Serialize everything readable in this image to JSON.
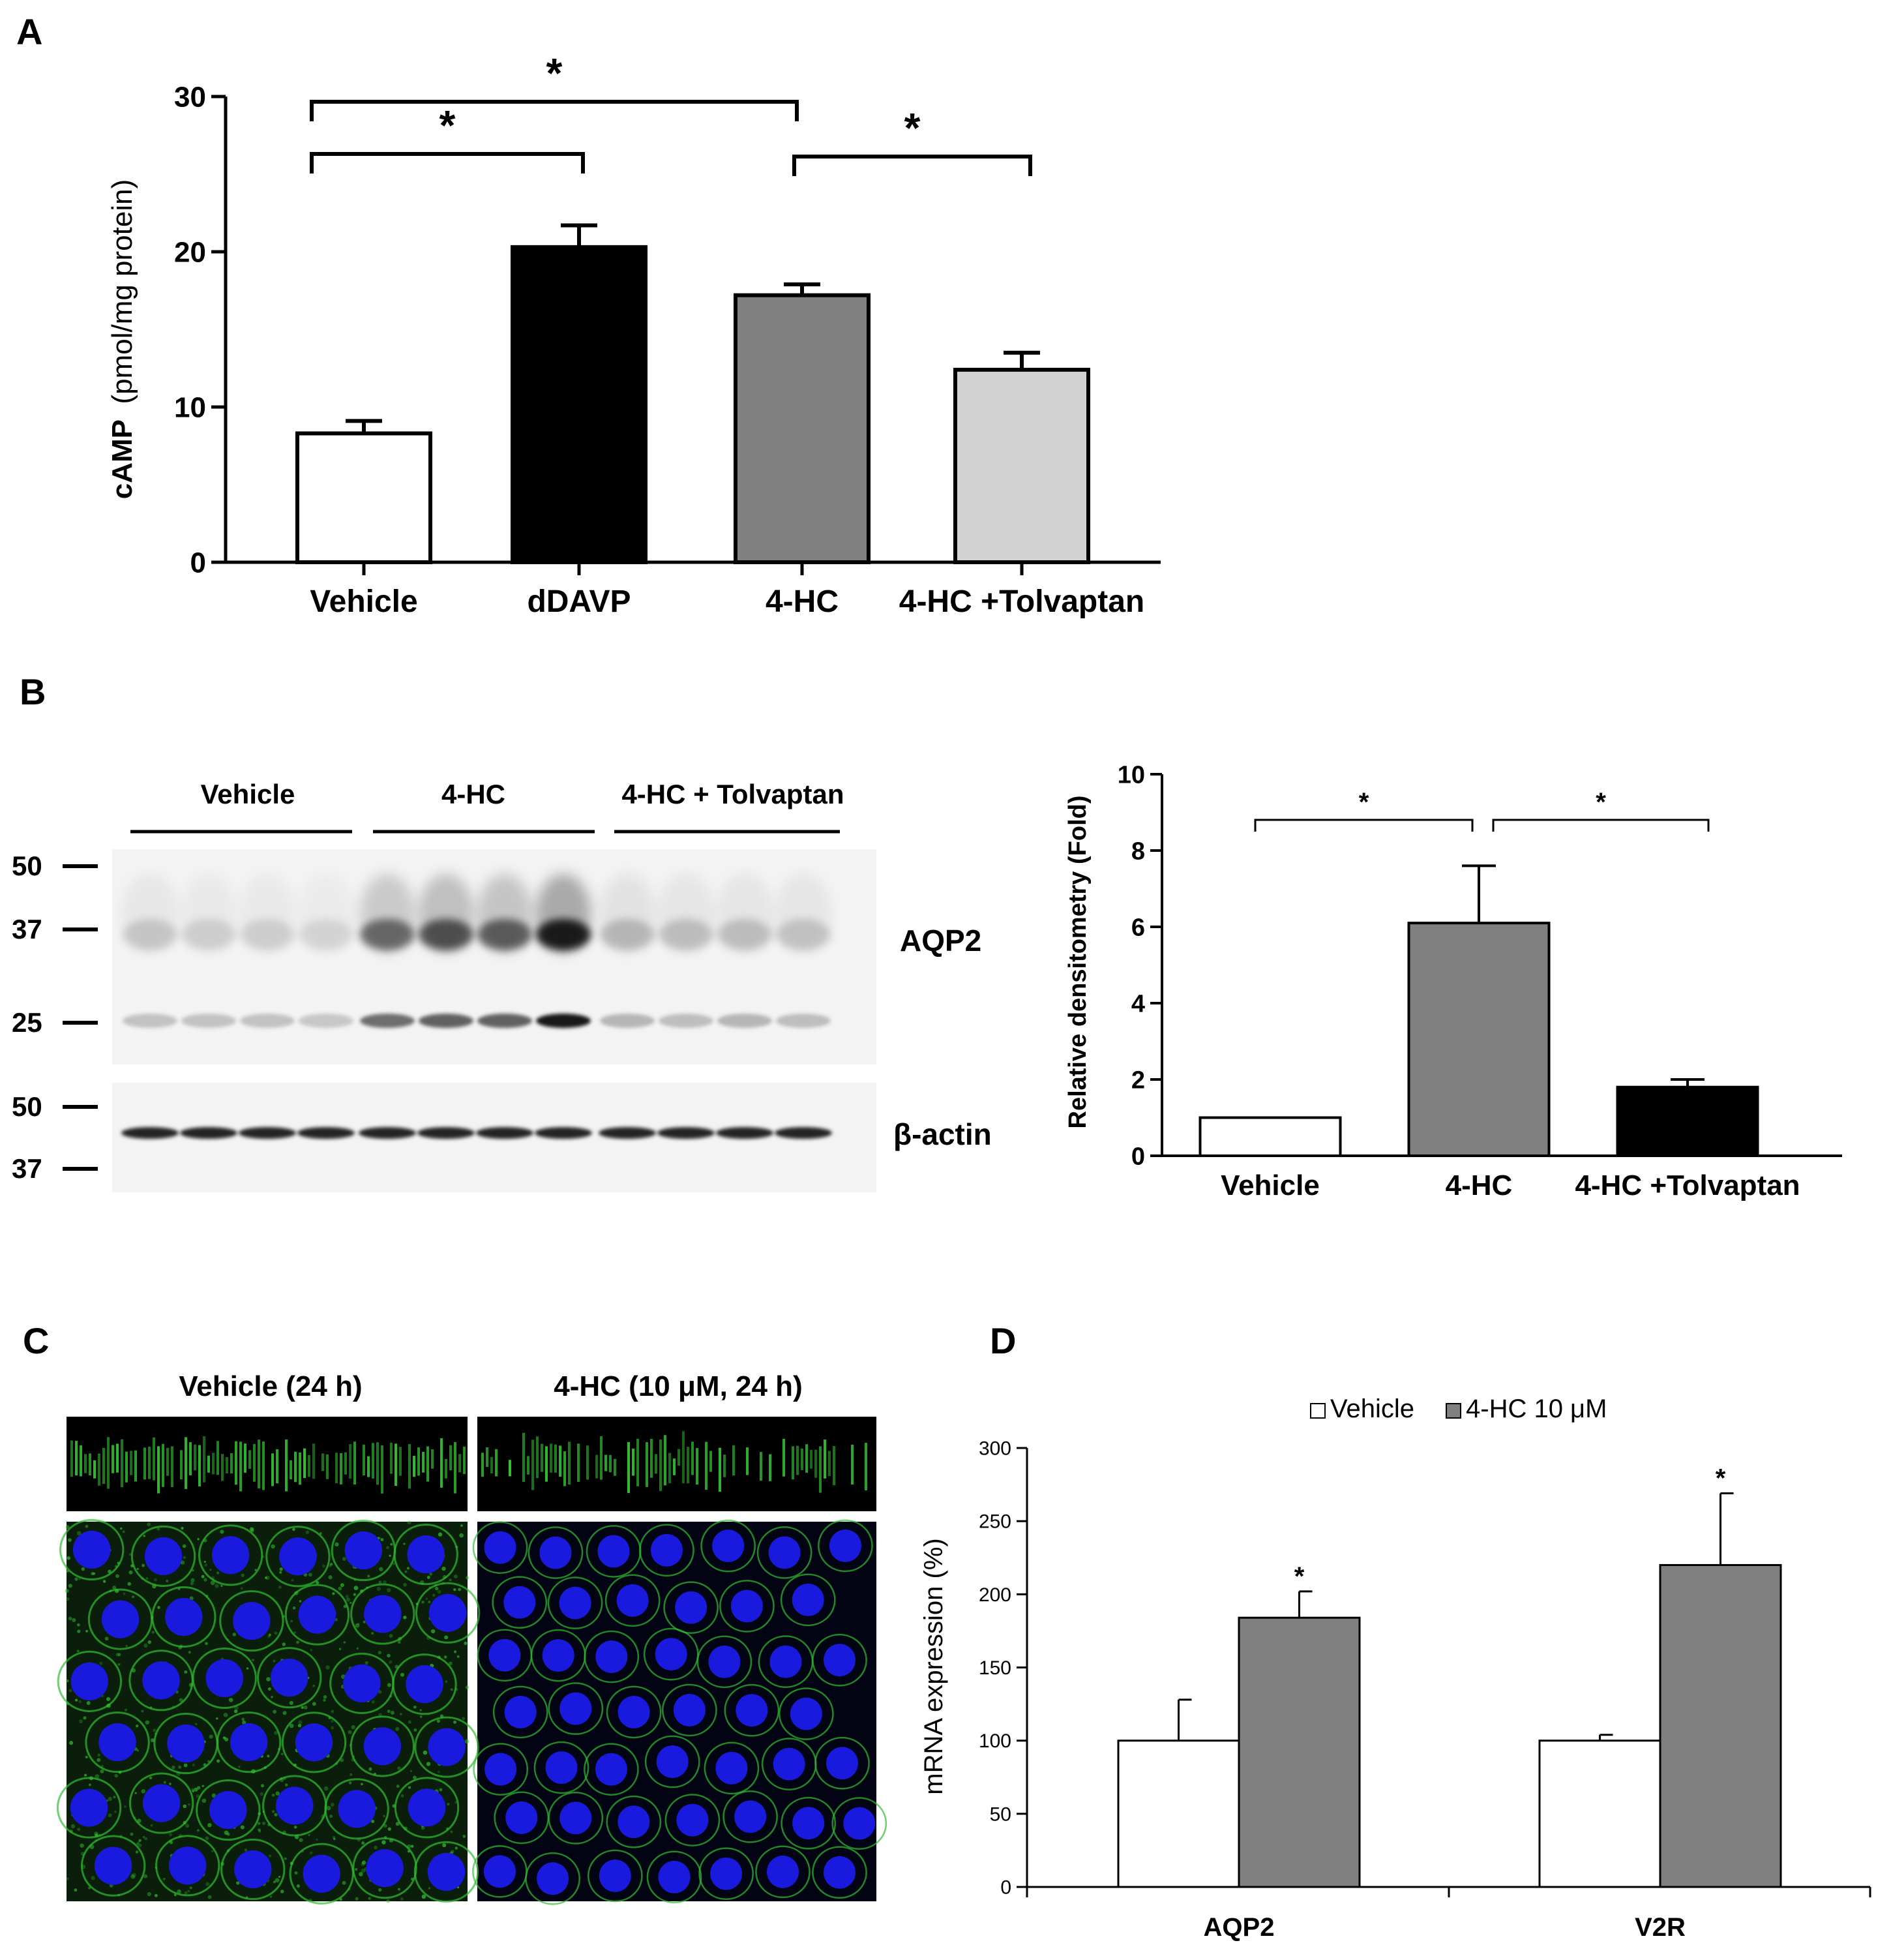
{
  "panels": {
    "a": "A",
    "b": "B",
    "c": "C",
    "d": "D"
  },
  "blot": {
    "groups": [
      "Vehicle",
      "4-HC",
      "4-HC + Tolvaptan"
    ],
    "aqp2_label": "AQP2",
    "actin_label": "β-actin",
    "markers_top": [
      "50",
      "37",
      "25"
    ],
    "markers_bottom": [
      "50",
      "37"
    ],
    "lanes_per_group": 4
  },
  "images": {
    "titles": [
      "Vehicle (24 h)",
      "4-HC (10 μM, 24 h)"
    ]
  },
  "colors": {
    "white_bar": "#ffffff",
    "black_bar": "#000000",
    "dark_gray_bar": "#808080",
    "light_gray_bar": "#d3d3d3",
    "fluor_green": "#2fbf2f",
    "nuclei_blue": "#1a1adf"
  },
  "chart_data": [
    {
      "id": "A",
      "type": "bar",
      "categories": [
        "Vehicle",
        "dDAVP",
        "4-HC",
        "4-HC +Tolvaptan"
      ],
      "values": [
        8.3,
        20.3,
        17.2,
        12.4
      ],
      "errors": [
        0.8,
        1.4,
        0.7,
        1.1
      ],
      "bar_colors": [
        "#ffffff",
        "#000000",
        "#808080",
        "#d3d3d3"
      ],
      "ylabel_bold": "cAMP",
      "ylabel_rest": "(pmol/mg protein)",
      "ylim": [
        0,
        30
      ],
      "yticks": [
        0,
        10,
        20,
        30
      ],
      "significance": [
        {
          "from": 0,
          "to": 2,
          "label": "*"
        },
        {
          "from": 0,
          "to": 1,
          "label": "*"
        },
        {
          "from": 2,
          "to": 3,
          "label": "*"
        }
      ]
    },
    {
      "id": "B",
      "type": "bar",
      "categories": [
        "Vehicle",
        "4-HC",
        "4-HC +Tolvaptan"
      ],
      "values": [
        1.0,
        6.1,
        1.8
      ],
      "errors": [
        0,
        1.5,
        0.2
      ],
      "bar_colors": [
        "#ffffff",
        "#808080",
        "#000000"
      ],
      "ylabel": "Relative densitometry (Fold)",
      "ylim": [
        0,
        10
      ],
      "yticks": [
        0,
        2,
        4,
        6,
        8,
        10
      ],
      "significance": [
        {
          "from": 0,
          "to": 1,
          "label": "*"
        },
        {
          "from": 1,
          "to": 2,
          "label": "*"
        }
      ]
    },
    {
      "id": "D",
      "type": "bar",
      "categories": [
        "AQP2",
        "V2R"
      ],
      "series": [
        {
          "name": "Vehicle",
          "values": [
            100,
            100
          ],
          "errors": [
            28,
            4
          ],
          "color": "#ffffff"
        },
        {
          "name": "4-HC 10 μM",
          "values": [
            184,
            220
          ],
          "errors": [
            18,
            49
          ],
          "color": "#808080"
        }
      ],
      "ylabel": "mRNA expression (%)",
      "ylim": [
        0,
        300
      ],
      "yticks": [
        0,
        50,
        100,
        150,
        200,
        250,
        300
      ],
      "significance_label": "*",
      "legend": "top-center"
    }
  ]
}
